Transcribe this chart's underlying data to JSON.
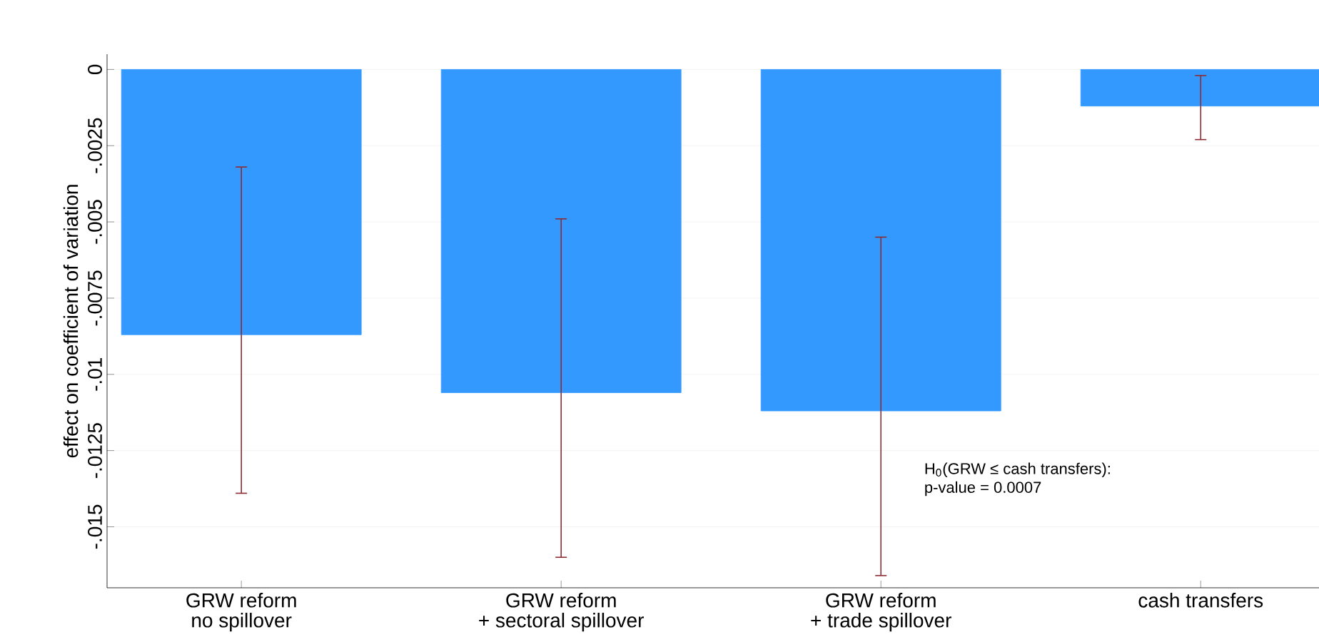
{
  "chart_data": {
    "type": "bar",
    "ylabel": "effect on coefficient of variation",
    "categories": [
      "GRW reform\nno spillover",
      "GRW reform\n+ sectoral spillover",
      "GRW reform\n+ trade spillover",
      "cash transfers"
    ],
    "values": [
      -0.0087,
      -0.0106,
      -0.0112,
      -0.0012
    ],
    "errors": [
      [
        -0.0139,
        -0.0032
      ],
      [
        -0.016,
        -0.0049
      ],
      [
        -0.0166,
        -0.0055
      ],
      [
        -0.0023,
        -0.0002
      ]
    ],
    "color": "#3399ff",
    "ylim": [
      -0.017,
      0.0005
    ],
    "yticks": [
      0,
      {
        "value": -0.0025,
        "label": "-.0025"
      },
      {
        "value": -0.005,
        "label": "-.005"
      },
      {
        "value": -0.0075,
        "label": "-.0075"
      },
      {
        "value": -0.01,
        "label": "-.01"
      },
      {
        "value": -0.0125,
        "label": "-.0125"
      },
      {
        "value": -0.015,
        "label": "-.015"
      }
    ],
    "grid": "y",
    "annotations": [
      "H$_{0}$(GRW ≤ cash transfers):",
      "p-value = 0.0007"
    ]
  }
}
